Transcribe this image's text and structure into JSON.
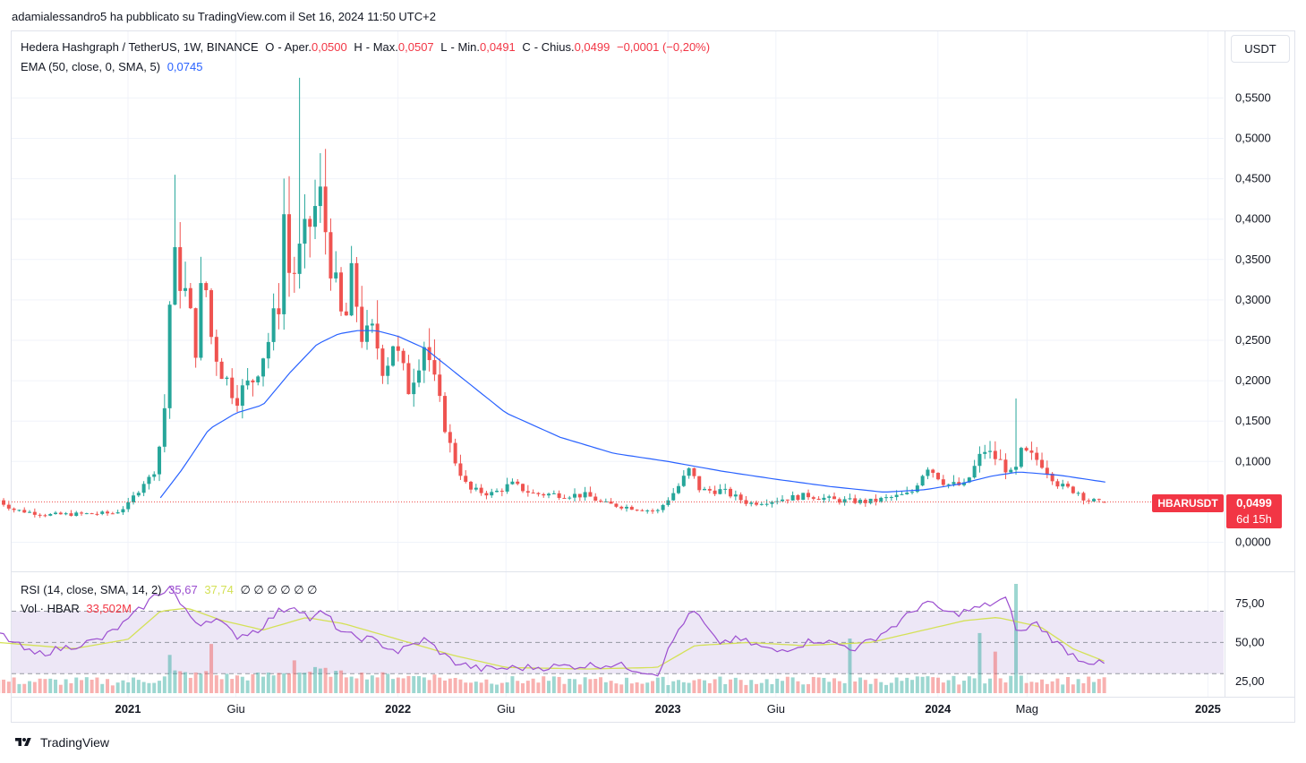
{
  "publisher_line": "adamialessandro5 ha pubblicato su TradingView.com il Set 16, 2024 11:50 UTC+2",
  "unit_button": "USDT",
  "legend": {
    "symbol": "Hedera Hashgraph / TetherUS, 1W, BINANCE",
    "o_label": "O",
    "o_text": "- Aper.",
    "o_value": "0,0500",
    "h_label": "H",
    "h_text": "- Max.",
    "h_value": "0,0507",
    "l_label": "L",
    "l_text": "- Min.",
    "l_value": "0,0491",
    "c_label": "C",
    "c_text": "- Chius.",
    "c_value": "0,0499",
    "change": "−0,0001 (−0,20%)",
    "ema_label": "EMA (50, close, 0, SMA, 5)",
    "ema_value": "0,0745",
    "rsi_label": "RSI (14, close, SMA, 14, 2)",
    "rsi_value": "35,67",
    "rsi_ma_value": "37,74",
    "rsi_extra": "∅ ∅ ∅ ∅ ∅ ∅",
    "vol_label": "Vol · HBAR",
    "vol_value": "33,502M"
  },
  "tags": {
    "symbol": "HBARUSDT",
    "price": "0,0499",
    "countdown": "6d 15h"
  },
  "footer": {
    "brand": "TradingView"
  },
  "colors": {
    "up": "#26a69a",
    "down": "#ef5350",
    "ema": "#2962ff",
    "rsi": "#9c4fd0",
    "rsi_ma": "#d4e157",
    "rsi_band": "#ede7f6"
  },
  "chart_data": {
    "type": "candlestick",
    "timeframe": "1W",
    "price_axis": {
      "ticks": [
        "0,5500",
        "0,5000",
        "0,4500",
        "0,4000",
        "0,3500",
        "0,3000",
        "0,2500",
        "0,2000",
        "0,1500",
        "0,1000",
        "0,0000"
      ],
      "tick_values": [
        0.55,
        0.5,
        0.45,
        0.4,
        0.35,
        0.3,
        0.25,
        0.2,
        0.15,
        0.1,
        0.0
      ],
      "range": [
        -0.03,
        0.6
      ]
    },
    "time_axis": {
      "labels": [
        "2021",
        "Giu",
        "2022",
        "Giu",
        "2023",
        "Giu",
        "2024",
        "Mag",
        "2025"
      ],
      "label_t": [
        0.0,
        0.4,
        1.0,
        1.4,
        2.0,
        2.4,
        3.0,
        3.33,
        4.0
      ]
    },
    "rsi_axis": {
      "ticks": [
        "75,00",
        "50,00",
        "25,00"
      ],
      "tick_values": [
        75,
        50,
        25
      ],
      "band": [
        30,
        70
      ],
      "range": [
        20,
        95
      ]
    },
    "anchors": [
      {
        "t": -0.48,
        "c": 0.052
      },
      {
        "t": -0.42,
        "c": 0.04
      },
      {
        "t": -0.3,
        "c": 0.034
      },
      {
        "t": -0.05,
        "c": 0.036
      },
      {
        "t": 0.0,
        "c": 0.046
      },
      {
        "t": 0.06,
        "c": 0.076
      },
      {
        "t": 0.09,
        "c": 0.08
      },
      {
        "t": 0.13,
        "c": 0.14
      },
      {
        "t": 0.15,
        "c": 0.24
      },
      {
        "t": 0.16,
        "c": 0.36
      },
      {
        "t": 0.19,
        "c": 0.33
      },
      {
        "t": 0.22,
        "c": 0.3
      },
      {
        "t": 0.25,
        "c": 0.24
      },
      {
        "t": 0.28,
        "c": 0.34
      },
      {
        "t": 0.31,
        "c": 0.25
      },
      {
        "t": 0.35,
        "c": 0.21
      },
      {
        "t": 0.4,
        "c": 0.18
      },
      {
        "t": 0.46,
        "c": 0.2
      },
      {
        "t": 0.52,
        "c": 0.25
      },
      {
        "t": 0.56,
        "c": 0.3
      },
      {
        "t": 0.58,
        "c": 0.42
      },
      {
        "t": 0.6,
        "c": 0.32
      },
      {
        "t": 0.64,
        "c": 0.36
      },
      {
        "t": 0.68,
        "c": 0.4
      },
      {
        "t": 0.71,
        "c": 0.43
      },
      {
        "t": 0.76,
        "c": 0.33
      },
      {
        "t": 0.8,
        "c": 0.26
      },
      {
        "t": 0.83,
        "c": 0.33
      },
      {
        "t": 0.87,
        "c": 0.25
      },
      {
        "t": 0.91,
        "c": 0.26
      },
      {
        "t": 0.95,
        "c": 0.21
      },
      {
        "t": 0.98,
        "c": 0.25
      },
      {
        "t": 1.04,
        "c": 0.19
      },
      {
        "t": 1.1,
        "c": 0.25
      },
      {
        "t": 1.14,
        "c": 0.19
      },
      {
        "t": 1.2,
        "c": 0.11
      },
      {
        "t": 1.26,
        "c": 0.065
      },
      {
        "t": 1.35,
        "c": 0.06
      },
      {
        "t": 1.42,
        "c": 0.072
      },
      {
        "t": 1.5,
        "c": 0.06
      },
      {
        "t": 1.7,
        "c": 0.058
      },
      {
        "t": 1.76,
        "c": 0.048
      },
      {
        "t": 1.96,
        "c": 0.038
      },
      {
        "t": 2.03,
        "c": 0.065
      },
      {
        "t": 2.08,
        "c": 0.09
      },
      {
        "t": 2.12,
        "c": 0.064
      },
      {
        "t": 2.2,
        "c": 0.064
      },
      {
        "t": 2.3,
        "c": 0.048
      },
      {
        "t": 2.52,
        "c": 0.058
      },
      {
        "t": 2.62,
        "c": 0.052
      },
      {
        "t": 2.74,
        "c": 0.05
      },
      {
        "t": 2.9,
        "c": 0.06
      },
      {
        "t": 2.96,
        "c": 0.095
      },
      {
        "t": 3.03,
        "c": 0.072
      },
      {
        "t": 3.1,
        "c": 0.07
      },
      {
        "t": 3.17,
        "c": 0.115
      },
      {
        "t": 3.23,
        "c": 0.1
      },
      {
        "t": 3.28,
        "c": 0.08
      },
      {
        "t": 3.31,
        "c": 0.112
      },
      {
        "t": 3.38,
        "c": 0.1
      },
      {
        "t": 3.45,
        "c": 0.07
      },
      {
        "t": 3.52,
        "c": 0.062
      },
      {
        "t": 3.55,
        "c": 0.052
      },
      {
        "t": 3.6,
        "c": 0.05
      },
      {
        "t": 3.62,
        "c": 0.0499
      }
    ],
    "spikes": [
      {
        "t": 0.64,
        "high": 0.575
      },
      {
        "t": 0.71,
        "high": 0.475
      },
      {
        "t": 0.18,
        "high": 0.455
      },
      {
        "t": 3.29,
        "high": 0.178
      },
      {
        "t": 1.12,
        "high": 0.265
      }
    ],
    "ema50": [
      {
        "t": 0.12,
        "v": 0.055
      },
      {
        "t": 0.2,
        "v": 0.09
      },
      {
        "t": 0.3,
        "v": 0.14
      },
      {
        "t": 0.4,
        "v": 0.16
      },
      {
        "t": 0.5,
        "v": 0.17
      },
      {
        "t": 0.6,
        "v": 0.21
      },
      {
        "t": 0.7,
        "v": 0.245
      },
      {
        "t": 0.78,
        "v": 0.258
      },
      {
        "t": 0.85,
        "v": 0.262
      },
      {
        "t": 0.92,
        "v": 0.262
      },
      {
        "t": 1.0,
        "v": 0.255
      },
      {
        "t": 1.1,
        "v": 0.24
      },
      {
        "t": 1.25,
        "v": 0.2
      },
      {
        "t": 1.4,
        "v": 0.16
      },
      {
        "t": 1.6,
        "v": 0.13
      },
      {
        "t": 1.8,
        "v": 0.11
      },
      {
        "t": 2.0,
        "v": 0.1
      },
      {
        "t": 2.2,
        "v": 0.088
      },
      {
        "t": 2.4,
        "v": 0.078
      },
      {
        "t": 2.6,
        "v": 0.069
      },
      {
        "t": 2.8,
        "v": 0.062
      },
      {
        "t": 2.95,
        "v": 0.065
      },
      {
        "t": 3.08,
        "v": 0.072
      },
      {
        "t": 3.2,
        "v": 0.082
      },
      {
        "t": 3.3,
        "v": 0.087
      },
      {
        "t": 3.45,
        "v": 0.083
      },
      {
        "t": 3.62,
        "v": 0.0745
      }
    ],
    "rsi": [
      {
        "t": -0.48,
        "v": 56
      },
      {
        "t": -0.35,
        "v": 42
      },
      {
        "t": -0.1,
        "v": 52
      },
      {
        "t": 0.0,
        "v": 64
      },
      {
        "t": 0.1,
        "v": 80
      },
      {
        "t": 0.16,
        "v": 86
      },
      {
        "t": 0.2,
        "v": 72
      },
      {
        "t": 0.26,
        "v": 62
      },
      {
        "t": 0.32,
        "v": 66
      },
      {
        "t": 0.4,
        "v": 54
      },
      {
        "t": 0.48,
        "v": 58
      },
      {
        "t": 0.56,
        "v": 70
      },
      {
        "t": 0.62,
        "v": 74
      },
      {
        "t": 0.68,
        "v": 64
      },
      {
        "t": 0.72,
        "v": 70
      },
      {
        "t": 0.8,
        "v": 55
      },
      {
        "t": 0.9,
        "v": 52
      },
      {
        "t": 1.0,
        "v": 44
      },
      {
        "t": 1.1,
        "v": 52
      },
      {
        "t": 1.2,
        "v": 38
      },
      {
        "t": 1.3,
        "v": 33
      },
      {
        "t": 1.5,
        "v": 34
      },
      {
        "t": 1.8,
        "v": 36
      },
      {
        "t": 1.96,
        "v": 30
      },
      {
        "t": 2.05,
        "v": 62
      },
      {
        "t": 2.1,
        "v": 70
      },
      {
        "t": 2.18,
        "v": 50
      },
      {
        "t": 2.26,
        "v": 52
      },
      {
        "t": 2.4,
        "v": 44
      },
      {
        "t": 2.55,
        "v": 52
      },
      {
        "t": 2.7,
        "v": 46
      },
      {
        "t": 2.85,
        "v": 62
      },
      {
        "t": 2.95,
        "v": 76
      },
      {
        "t": 3.05,
        "v": 68
      },
      {
        "t": 3.15,
        "v": 72
      },
      {
        "t": 3.25,
        "v": 78
      },
      {
        "t": 3.3,
        "v": 55
      },
      {
        "t": 3.36,
        "v": 63
      },
      {
        "t": 3.45,
        "v": 48
      },
      {
        "t": 3.52,
        "v": 40
      },
      {
        "t": 3.58,
        "v": 37
      },
      {
        "t": 3.62,
        "v": 35.67
      }
    ],
    "rsi_ma": [
      {
        "t": -0.48,
        "v": 50
      },
      {
        "t": -0.2,
        "v": 46
      },
      {
        "t": 0.0,
        "v": 52
      },
      {
        "t": 0.12,
        "v": 70
      },
      {
        "t": 0.22,
        "v": 72
      },
      {
        "t": 0.35,
        "v": 64
      },
      {
        "t": 0.5,
        "v": 58
      },
      {
        "t": 0.66,
        "v": 66
      },
      {
        "t": 0.8,
        "v": 62
      },
      {
        "t": 1.0,
        "v": 52
      },
      {
        "t": 1.2,
        "v": 42
      },
      {
        "t": 1.4,
        "v": 34
      },
      {
        "t": 1.7,
        "v": 33
      },
      {
        "t": 1.96,
        "v": 34
      },
      {
        "t": 2.1,
        "v": 48
      },
      {
        "t": 2.3,
        "v": 50
      },
      {
        "t": 2.5,
        "v": 48
      },
      {
        "t": 2.75,
        "v": 50
      },
      {
        "t": 2.95,
        "v": 58
      },
      {
        "t": 3.1,
        "v": 64
      },
      {
        "t": 3.22,
        "v": 66
      },
      {
        "t": 3.38,
        "v": 60
      },
      {
        "t": 3.5,
        "v": 46
      },
      {
        "t": 3.62,
        "v": 37.74
      }
    ],
    "volume_spikes": [
      {
        "t": 3.28,
        "level": 1.0
      },
      {
        "t": 3.15,
        "level": 0.55
      },
      {
        "t": 2.67,
        "level": 0.5
      },
      {
        "t": 0.3,
        "level": 0.45
      },
      {
        "t": 0.16,
        "level": 0.35
      },
      {
        "t": 0.62,
        "level": 0.3
      },
      {
        "t": 3.22,
        "level": 0.38
      }
    ]
  }
}
